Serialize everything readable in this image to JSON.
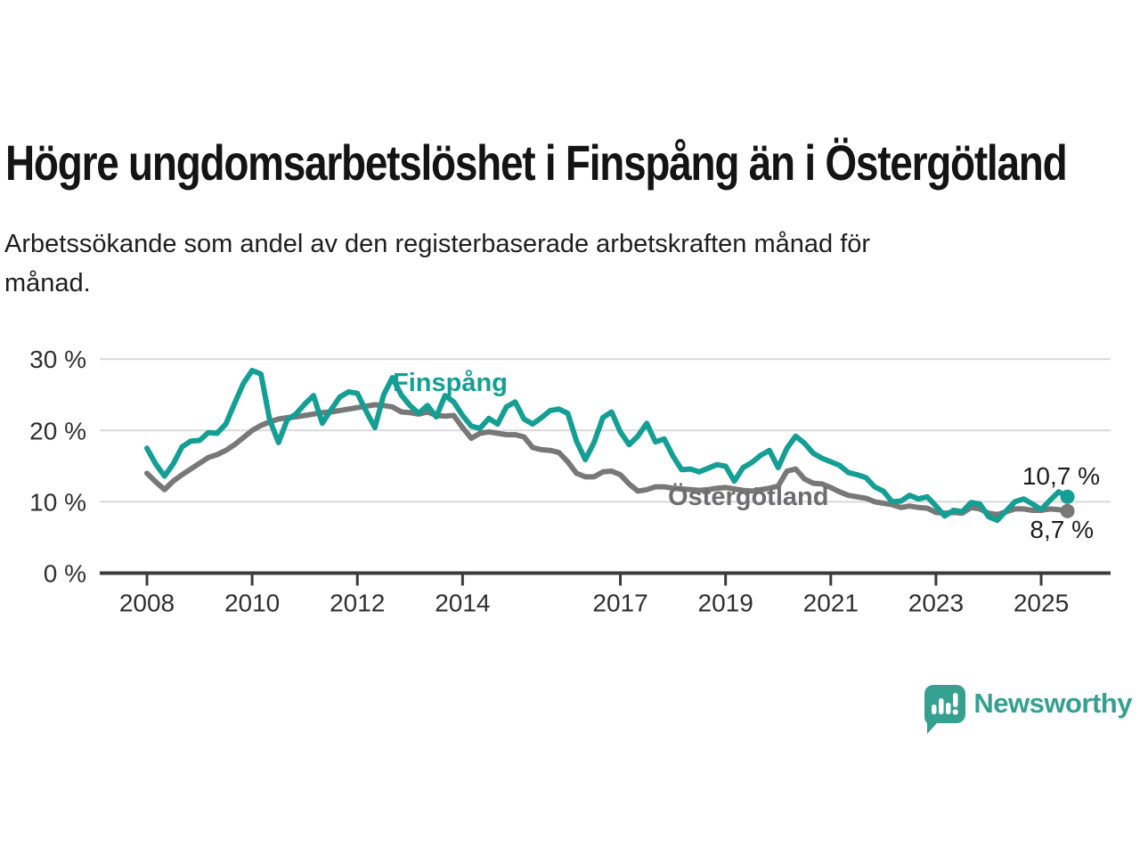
{
  "header": {
    "title": "Högre ungdomsarbetslöshet i Finspång än i Östergötland",
    "subtitle_lines": [
      "Arbetssökande som andel av den registerbaserade arbetskraften månad för",
      "månad."
    ]
  },
  "chart_data": {
    "type": "line",
    "title": "Högre ungdomsarbetslöshet i Finspång än i Östergötland",
    "subtitle": "Arbetssökande som andel av den registerbaserade arbetskraften månad för månad.",
    "xlabel": "",
    "ylabel": "",
    "x_unit": "year",
    "x_start": 2008.0,
    "x_step": 0.166667,
    "x_end": 2025.5,
    "ylim": [
      0,
      30
    ],
    "yticks": [
      0,
      10,
      20,
      30
    ],
    "ytick_labels": [
      "0 %",
      "10 %",
      "20 %",
      "30 %"
    ],
    "xticks": [
      2008,
      2010,
      2012,
      2014,
      2017,
      2019,
      2021,
      2023,
      2025
    ],
    "grid": "horizontal",
    "gridline_color": "#d9d9d9",
    "axis_color": "#3b3b3b",
    "tick_label_color": "#2f2f2f",
    "legend_position": "inline-labels",
    "series": [
      {
        "id": "finspang",
        "name": "Finspång",
        "color": "#149e94",
        "label_color": "#149e94",
        "end_label": "10,7 %",
        "end_value": 10.7,
        "values": [
          17.5,
          15.3,
          13.6,
          15.3,
          17.7,
          18.5,
          18.6,
          19.7,
          19.6,
          20.9,
          23.8,
          26.6,
          28.4,
          27.9,
          21.5,
          18.3,
          21.5,
          22.3,
          23.7,
          24.9,
          21.0,
          22.9,
          24.7,
          25.4,
          25.2,
          22.7,
          20.4,
          25.0,
          27.4,
          25.0,
          23.5,
          22.4,
          23.5,
          21.9,
          24.9,
          24.0,
          22.1,
          20.6,
          20.3,
          21.7,
          20.9,
          23.3,
          24.0,
          21.6,
          20.9,
          21.8,
          22.8,
          23.0,
          22.4,
          18.5,
          15.9,
          18.3,
          21.8,
          22.6,
          19.8,
          18.0,
          19.2,
          21.0,
          18.4,
          18.8,
          16.4,
          14.5,
          14.6,
          14.2,
          14.7,
          15.2,
          15.0,
          12.9,
          14.8,
          15.5,
          16.5,
          17.2,
          14.8,
          17.5,
          19.2,
          18.2,
          16.8,
          16.1,
          15.6,
          15.1,
          14.1,
          13.8,
          13.4,
          12.1,
          11.5,
          10.0,
          10.1,
          10.9,
          10.4,
          10.7,
          9.4,
          8.0,
          8.8,
          8.6,
          9.9,
          9.7,
          7.9,
          7.4,
          8.7,
          10.0,
          10.4,
          9.7,
          8.9,
          10.2,
          11.4,
          10.7
        ]
      },
      {
        "id": "ostergotland",
        "name": "Östergötland",
        "color": "#787878",
        "label_color": "#6e6e70",
        "end_label": "8,7 %",
        "end_value": 8.7,
        "values": [
          14.0,
          12.8,
          11.7,
          12.9,
          13.8,
          14.6,
          15.4,
          16.2,
          16.6,
          17.2,
          18.0,
          19.0,
          20.0,
          20.7,
          21.2,
          21.6,
          21.8,
          21.9,
          22.1,
          22.3,
          22.5,
          22.6,
          22.8,
          23.0,
          23.2,
          23.4,
          23.6,
          23.5,
          23.3,
          22.6,
          22.5,
          22.3,
          22.6,
          22.1,
          22.0,
          22.1,
          20.4,
          18.9,
          19.6,
          19.8,
          19.6,
          19.4,
          19.4,
          19.1,
          17.6,
          17.3,
          17.2,
          16.9,
          15.6,
          14.0,
          13.5,
          13.5,
          14.2,
          14.3,
          13.8,
          12.5,
          11.5,
          11.7,
          12.1,
          12.1,
          11.9,
          11.8,
          11.7,
          11.6,
          11.7,
          11.9,
          12.0,
          11.8,
          11.6,
          11.5,
          11.7,
          11.9,
          12.2,
          14.3,
          14.6,
          13.2,
          12.6,
          12.5,
          12.0,
          11.4,
          10.9,
          10.7,
          10.5,
          10.0,
          9.8,
          9.6,
          9.2,
          9.4,
          9.2,
          9.1,
          8.5,
          8.4,
          8.5,
          8.4,
          9.2,
          9.0,
          8.4,
          8.2,
          8.6,
          9.0,
          9.0,
          8.8,
          8.8,
          9.0,
          8.9,
          8.7
        ]
      }
    ]
  },
  "footer": {
    "brand": "Newsworthy",
    "brand_color": "#35a08f",
    "logo_icon": "speech-bubble-bar-chart-icon"
  }
}
